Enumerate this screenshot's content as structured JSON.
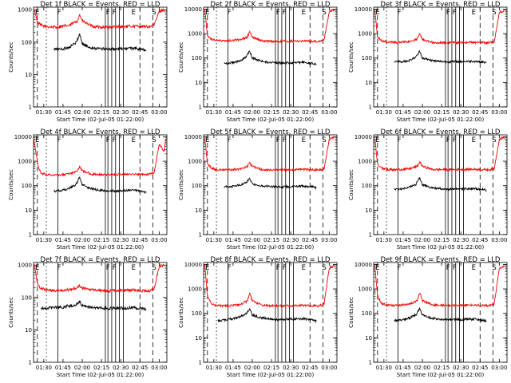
{
  "chart_data": [
    {
      "type": "line",
      "title": "Det 1f BLACK = Events, RED = LLD",
      "xlabel": "Start Time (02-Jul-05 01:22:00)",
      "ylabel": "Counts/sec",
      "x_tick_labels": [
        "01:30",
        "01:45",
        "02:00",
        "02:15",
        "02:30",
        "02:45",
        "03:00"
      ],
      "y_tick_labels": [
        "1",
        "10",
        "100",
        "1000"
      ],
      "xlim_minutes": [
        82,
        186
      ],
      "ylim": [
        1,
        1200
      ],
      "yscale": "log",
      "markers": [
        "E",
        "F",
        "F",
        "F",
        "E",
        "S"
      ],
      "series": [
        {
          "color": "#ff0000",
          "x": [
            83,
            85,
            88,
            92,
            100,
            110,
            116,
            118,
            120,
            128,
            140,
            150,
            160,
            168,
            172,
            174,
            176,
            180,
            184
          ],
          "y": [
            950,
            400,
            330,
            300,
            290,
            330,
            450,
            700,
            450,
            300,
            290,
            300,
            310,
            300,
            300,
            320,
            330,
            900,
            1000
          ]
        },
        {
          "color": "#000000",
          "x": [
            98,
            105,
            110,
            115,
            118,
            120,
            125,
            130,
            140,
            150,
            160,
            168,
            170
          ],
          "y": [
            60,
            62,
            70,
            95,
            180,
            90,
            70,
            65,
            60,
            62,
            65,
            58,
            55
          ]
        }
      ]
    },
    {
      "type": "line",
      "title": "Det 2f BLACK = Events, RED = LLD",
      "xlabel": "Start Time (02-Jul-05 01:22:00)",
      "ylabel": "Counts/sec",
      "x_tick_labels": [
        "01:30",
        "01:45",
        "02:00",
        "02:15",
        "02:30",
        "02:45",
        "03:00"
      ],
      "y_tick_labels": [
        "1",
        "10",
        "100",
        "1000",
        "10000"
      ],
      "xlim_minutes": [
        82,
        186
      ],
      "ylim": [
        1,
        12000
      ],
      "yscale": "log",
      "markers": [
        "E",
        "F",
        "F",
        "F",
        "E",
        "S"
      ],
      "series": [
        {
          "color": "#ff0000",
          "x": [
            83,
            85,
            88,
            92,
            100,
            110,
            116,
            118,
            120,
            128,
            140,
            150,
            160,
            168,
            172,
            174,
            176,
            180,
            184
          ],
          "y": [
            9000,
            800,
            600,
            520,
            500,
            560,
            700,
            1200,
            700,
            500,
            480,
            490,
            500,
            480,
            480,
            520,
            560,
            8000,
            9500
          ]
        },
        {
          "color": "#000000",
          "x": [
            98,
            105,
            110,
            115,
            118,
            120,
            125,
            130,
            140,
            150,
            160,
            168,
            170
          ],
          "y": [
            60,
            65,
            75,
            110,
            200,
            100,
            80,
            70,
            62,
            64,
            66,
            60,
            55
          ]
        }
      ]
    },
    {
      "type": "line",
      "title": "Det 3f BLACK = Events, RED = LLD",
      "xlabel": "Start Time (02-Jul-05 01:22:00)",
      "ylabel": "Counts/sec",
      "x_tick_labels": [
        "01:30",
        "01:45",
        "02:00",
        "02:15",
        "02:30",
        "02:45",
        "03:00"
      ],
      "y_tick_labels": [
        "1",
        "10",
        "100",
        "1000",
        "10000"
      ],
      "xlim_minutes": [
        82,
        186
      ],
      "ylim": [
        1,
        12000
      ],
      "yscale": "log",
      "markers": [
        "E",
        "F",
        "F",
        "F",
        "E",
        "S"
      ],
      "series": [
        {
          "color": "#ff0000",
          "x": [
            83,
            85,
            88,
            92,
            100,
            110,
            116,
            118,
            120,
            128,
            140,
            150,
            160,
            168,
            172,
            174,
            176,
            180,
            184
          ],
          "y": [
            9000,
            700,
            520,
            450,
            430,
            470,
            600,
            1000,
            600,
            430,
            420,
            430,
            440,
            420,
            420,
            450,
            480,
            7000,
            9000
          ]
        },
        {
          "color": "#000000",
          "x": [
            98,
            105,
            110,
            115,
            118,
            120,
            125,
            130,
            140,
            150,
            160,
            168,
            170
          ],
          "y": [
            70,
            72,
            80,
            110,
            190,
            100,
            85,
            75,
            70,
            72,
            74,
            68,
            62
          ]
        }
      ]
    },
    {
      "type": "line",
      "title": "Det 4f BLACK = Events, RED = LLD",
      "xlabel": "Start Time (02-Jul-05 01:22:00)",
      "ylabel": "Counts/sec",
      "x_tick_labels": [
        "01:30",
        "01:45",
        "02:00",
        "02:15",
        "02:30",
        "02:45",
        "03:00"
      ],
      "y_tick_labels": [
        "1",
        "10",
        "100",
        "1000",
        "10000"
      ],
      "xlim_minutes": [
        82,
        186
      ],
      "ylim": [
        1,
        12000
      ],
      "yscale": "log",
      "markers": [
        "E",
        "F",
        "F",
        "F",
        "E",
        "S"
      ],
      "series": [
        {
          "color": "#ff0000",
          "x": [
            82,
            84,
            86,
            88,
            92,
            100,
            110,
            116,
            118,
            120,
            128,
            140,
            150,
            160,
            168,
            172,
            174,
            176,
            180,
            184,
            185
          ],
          "y": [
            8000,
            2000,
            500,
            320,
            280,
            270,
            300,
            400,
            600,
            400,
            290,
            280,
            290,
            300,
            290,
            290,
            310,
            330,
            5000,
            2500,
            8000
          ]
        },
        {
          "color": "#000000",
          "x": [
            98,
            105,
            110,
            115,
            118,
            120,
            125,
            130,
            140,
            150,
            160,
            168,
            170
          ],
          "y": [
            60,
            65,
            80,
            110,
            220,
            110,
            80,
            70,
            60,
            62,
            66,
            58,
            52
          ]
        }
      ]
    },
    {
      "type": "line",
      "title": "Det 5f BLACK = Events, RED = LLD",
      "xlabel": "Start Time (02-Jul-05 01:22:00)",
      "ylabel": "Counts/sec",
      "x_tick_labels": [
        "01:30",
        "01:45",
        "02:00",
        "02:15",
        "02:30",
        "02:45",
        "03:00"
      ],
      "y_tick_labels": [
        "1",
        "10",
        "100",
        "1000",
        "10000"
      ],
      "xlim_minutes": [
        82,
        186
      ],
      "ylim": [
        1,
        12000
      ],
      "yscale": "log",
      "markers": [
        "E",
        "F",
        "F",
        "F",
        "E",
        "S"
      ],
      "series": [
        {
          "color": "#ff0000",
          "x": [
            83,
            85,
            88,
            92,
            100,
            110,
            116,
            118,
            120,
            128,
            140,
            150,
            160,
            168,
            172,
            174,
            176,
            180,
            184
          ],
          "y": [
            9000,
            800,
            520,
            450,
            440,
            480,
            600,
            900,
            600,
            450,
            440,
            450,
            460,
            440,
            440,
            460,
            480,
            8000,
            9500
          ]
        },
        {
          "color": "#000000",
          "x": [
            98,
            105,
            110,
            115,
            118,
            120,
            125,
            130,
            140,
            150,
            160,
            168,
            170
          ],
          "y": [
            90,
            95,
            105,
            130,
            200,
            120,
            100,
            95,
            90,
            92,
            95,
            88,
            82
          ]
        }
      ]
    },
    {
      "type": "line",
      "title": "Det 6f BLACK = Events, RED = LLD",
      "xlabel": "Start Time (02-Jul-05 01:22:00)",
      "ylabel": "Counts/sec",
      "x_tick_labels": [
        "01:30",
        "01:45",
        "02:00",
        "02:15",
        "02:30",
        "02:45",
        "03:00"
      ],
      "y_tick_labels": [
        "1",
        "10",
        "100",
        "1000",
        "10000"
      ],
      "xlim_minutes": [
        82,
        186
      ],
      "ylim": [
        1,
        12000
      ],
      "yscale": "log",
      "markers": [
        "E",
        "F",
        "F",
        "F",
        "E",
        "S"
      ],
      "series": [
        {
          "color": "#ff0000",
          "x": [
            83,
            85,
            88,
            92,
            100,
            110,
            116,
            118,
            120,
            128,
            140,
            150,
            160,
            168,
            172,
            174,
            176,
            180,
            184
          ],
          "y": [
            9000,
            750,
            520,
            460,
            450,
            490,
            620,
            950,
            620,
            460,
            450,
            460,
            470,
            450,
            450,
            470,
            500,
            8000,
            9500
          ]
        },
        {
          "color": "#000000",
          "x": [
            98,
            105,
            110,
            115,
            118,
            120,
            125,
            130,
            140,
            150,
            160,
            168,
            170
          ],
          "y": [
            70,
            75,
            85,
            115,
            210,
            110,
            88,
            78,
            72,
            74,
            76,
            70,
            64
          ]
        }
      ]
    },
    {
      "type": "line",
      "title": "Det 7f BLACK = Events, RED = LLD",
      "xlabel": "Start Time (02-Jul-05 01:22:00)",
      "ylabel": "Counts/sec",
      "x_tick_labels": [
        "01:30",
        "01:45",
        "02:00",
        "02:15",
        "02:30",
        "02:45",
        "03:00"
      ],
      "y_tick_labels": [
        "1",
        "10",
        "100",
        "1000"
      ],
      "xlim_minutes": [
        82,
        186
      ],
      "ylim": [
        1,
        1200
      ],
      "yscale": "log",
      "markers": [
        "E",
        "F",
        "F",
        "F",
        "E",
        "S"
      ],
      "series": [
        {
          "color": "#ff0000",
          "x": [
            83,
            85,
            88,
            92,
            100,
            110,
            116,
            118,
            120,
            128,
            140,
            150,
            160,
            168,
            172,
            174,
            176,
            180,
            184
          ],
          "y": [
            950,
            250,
            190,
            170,
            160,
            175,
            200,
            230,
            200,
            170,
            160,
            165,
            170,
            160,
            160,
            170,
            180,
            900,
            1000
          ]
        },
        {
          "color": "#000000",
          "x": [
            88,
            95,
            105,
            110,
            115,
            118,
            120,
            125,
            130,
            140,
            150,
            160,
            168,
            170
          ],
          "y": [
            45,
            48,
            50,
            55,
            60,
            75,
            55,
            50,
            48,
            46,
            47,
            48,
            45,
            44
          ]
        }
      ]
    },
    {
      "type": "line",
      "title": "Det 8f BLACK = Events, RED = LLD",
      "xlabel": "Start Time (02-Jul-05 01:22:00)",
      "ylabel": "Counts/sec",
      "x_tick_labels": [
        "01:30",
        "01:45",
        "02:00",
        "02:15",
        "02:30",
        "02:45",
        "03:00"
      ],
      "y_tick_labels": [
        "1",
        "10",
        "100",
        "1000",
        "10000"
      ],
      "xlim_minutes": [
        82,
        186
      ],
      "ylim": [
        1,
        12000
      ],
      "yscale": "log",
      "markers": [
        "E",
        "F",
        "F",
        "F",
        "E",
        "S"
      ],
      "series": [
        {
          "color": "#ff0000",
          "x": [
            83,
            85,
            88,
            92,
            100,
            110,
            116,
            118,
            120,
            128,
            140,
            150,
            160,
            168,
            172,
            174,
            176,
            180,
            184
          ],
          "y": [
            9000,
            500,
            250,
            210,
            200,
            230,
            320,
            700,
            320,
            210,
            200,
            205,
            210,
            200,
            200,
            220,
            240,
            7000,
            9000
          ]
        },
        {
          "color": "#000000",
          "x": [
            93,
            100,
            105,
            110,
            115,
            118,
            120,
            125,
            130,
            140,
            150,
            160,
            168,
            170
          ],
          "y": [
            50,
            55,
            60,
            70,
            95,
            150,
            85,
            70,
            62,
            55,
            58,
            60,
            52,
            48
          ]
        }
      ]
    },
    {
      "type": "line",
      "title": "Det 9f BLACK = Events, RED = LLD",
      "xlabel": "Start Time (02-Jul-05 01:22:00)",
      "ylabel": "Counts/sec",
      "x_tick_labels": [
        "01:30",
        "01:45",
        "02:00",
        "02:15",
        "02:30",
        "02:45",
        "03:00"
      ],
      "y_tick_labels": [
        "1",
        "10",
        "100",
        "1000",
        "10000"
      ],
      "xlim_minutes": [
        82,
        186
      ],
      "ylim": [
        1,
        12000
      ],
      "yscale": "log",
      "markers": [
        "E",
        "F",
        "F",
        "F",
        "E",
        "S"
      ],
      "series": [
        {
          "color": "#ff0000",
          "x": [
            83,
            85,
            88,
            92,
            100,
            110,
            116,
            118,
            120,
            128,
            140,
            150,
            160,
            168,
            172,
            174,
            176,
            180,
            184
          ],
          "y": [
            9000,
            500,
            260,
            220,
            210,
            240,
            330,
            720,
            330,
            220,
            210,
            215,
            220,
            210,
            210,
            230,
            250,
            7000,
            9000
          ]
        },
        {
          "color": "#000000",
          "x": [
            98,
            105,
            110,
            115,
            118,
            120,
            125,
            130,
            140,
            150,
            160,
            168,
            170
          ],
          "y": [
            50,
            55,
            65,
            90,
            160,
            85,
            68,
            60,
            54,
            56,
            58,
            52,
            48
          ]
        }
      ]
    }
  ]
}
